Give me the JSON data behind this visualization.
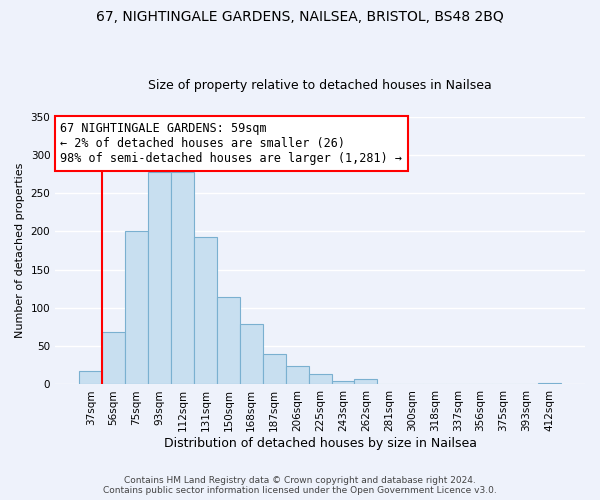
{
  "title1": "67, NIGHTINGALE GARDENS, NAILSEA, BRISTOL, BS48 2BQ",
  "title2": "Size of property relative to detached houses in Nailsea",
  "xlabel": "Distribution of detached houses by size in Nailsea",
  "ylabel": "Number of detached properties",
  "bar_labels": [
    "37sqm",
    "56sqm",
    "75sqm",
    "93sqm",
    "112sqm",
    "131sqm",
    "150sqm",
    "168sqm",
    "187sqm",
    "206sqm",
    "225sqm",
    "243sqm",
    "262sqm",
    "281sqm",
    "300sqm",
    "318sqm",
    "337sqm",
    "356sqm",
    "375sqm",
    "393sqm",
    "412sqm"
  ],
  "bar_values": [
    18,
    68,
    200,
    278,
    278,
    193,
    114,
    79,
    40,
    24,
    14,
    5,
    7,
    0,
    0,
    0,
    0,
    0,
    0,
    0,
    2
  ],
  "bar_color": "#c8dff0",
  "bar_edge_color": "#7ab0d0",
  "vline_color": "red",
  "annotation_text": "67 NIGHTINGALE GARDENS: 59sqm\n← 2% of detached houses are smaller (26)\n98% of semi-detached houses are larger (1,281) →",
  "annotation_box_color": "white",
  "annotation_box_edge_color": "red",
  "ylim": [
    0,
    350
  ],
  "yticks": [
    0,
    50,
    100,
    150,
    200,
    250,
    300,
    350
  ],
  "footer1": "Contains HM Land Registry data © Crown copyright and database right 2024.",
  "footer2": "Contains public sector information licensed under the Open Government Licence v3.0.",
  "background_color": "#eef2fb",
  "title1_fontsize": 10,
  "title2_fontsize": 9,
  "xlabel_fontsize": 9,
  "ylabel_fontsize": 8,
  "tick_fontsize": 7.5,
  "annotation_fontsize": 8.5,
  "footer_fontsize": 6.5
}
